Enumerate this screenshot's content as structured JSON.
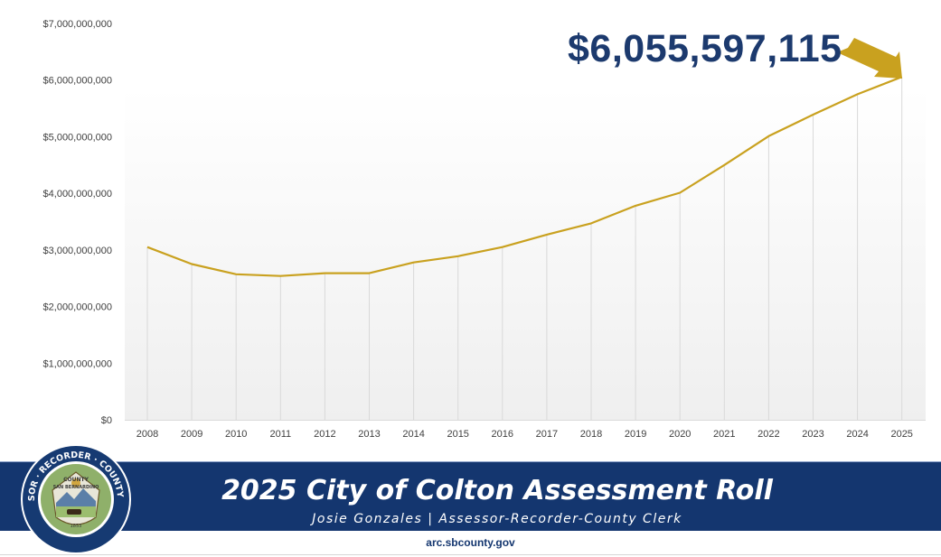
{
  "chart_data": {
    "type": "line",
    "title": "2025 City of Colton Assessment Roll",
    "x": [
      "2008",
      "2009",
      "2010",
      "2011",
      "2012",
      "2013",
      "2014",
      "2015",
      "2016",
      "2017",
      "2018",
      "2019",
      "2020",
      "2021",
      "2022",
      "2023",
      "2024",
      "2025"
    ],
    "series": [
      {
        "values": [
          3050000000,
          2750000000,
          2570000000,
          2540000000,
          2590000000,
          2590000000,
          2780000000,
          2890000000,
          3050000000,
          3270000000,
          3470000000,
          3780000000,
          4010000000,
          4500000000,
          5010000000,
          5390000000,
          5750000000,
          6055597115
        ]
      }
    ],
    "y_ticks": [
      "$0",
      "$1,000,000,000",
      "$2,000,000,000",
      "$3,000,000,000",
      "$4,000,000,000",
      "$5,000,000,000",
      "$6,000,000,000",
      "$7,000,000,000"
    ],
    "ylim": [
      0,
      7000000000
    ],
    "grid": "vertical drop lines at each year",
    "line_color": "#c9a11f",
    "annotation": "$6,055,597,115"
  },
  "banner": {
    "title": "2025 City of Colton Assessment Roll",
    "subtitle": "Josie Gonzales | Assessor-Recorder-County Clerk",
    "background": "#14366f"
  },
  "seal": {
    "ring_text": "ASSESSOR · RECORDER · COUNTY CLERK",
    "inner_top": "COUNTY",
    "inner_mid": "SAN BERNARDINO",
    "inner_bottom": "1853"
  },
  "footer": {
    "website": "arc.sbcounty.gov"
  },
  "colors": {
    "accent": "#c9a11f",
    "navy": "#14366f",
    "callout": "#1c3a6e"
  }
}
